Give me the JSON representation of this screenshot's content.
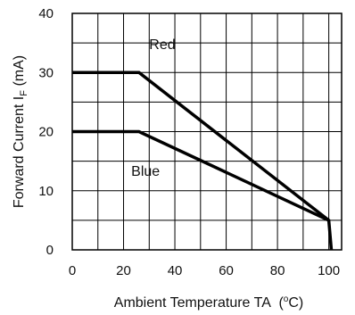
{
  "chart_data": {
    "type": "line",
    "xlabel": "Ambient Temperature TA",
    "xlabel_unit_prefix": "(",
    "xlabel_unit_sup": "o",
    "xlabel_unit_suffix": "C)",
    "ylabel_main": "Forward  Current  I",
    "ylabel_sub": "F",
    "ylabel_unit": " (mA)",
    "xlim": [
      0,
      105
    ],
    "ylim": [
      0,
      40
    ],
    "xticks": [
      0,
      20,
      40,
      60,
      80,
      100
    ],
    "yticks": [
      0,
      10,
      20,
      30,
      40
    ],
    "x_grid_step": 10,
    "y_grid_step": 5,
    "grid": true,
    "series": [
      {
        "name": "Red",
        "color": "#000000",
        "points": [
          [
            0,
            30
          ],
          [
            26,
            30
          ],
          [
            100,
            5
          ],
          [
            101,
            0
          ]
        ],
        "label_at": [
          30,
          34
        ]
      },
      {
        "name": "Blue",
        "color": "#000000",
        "points": [
          [
            0,
            20
          ],
          [
            26,
            20
          ],
          [
            100,
            5
          ]
        ],
        "label_at": [
          23,
          12.5
        ]
      }
    ]
  }
}
